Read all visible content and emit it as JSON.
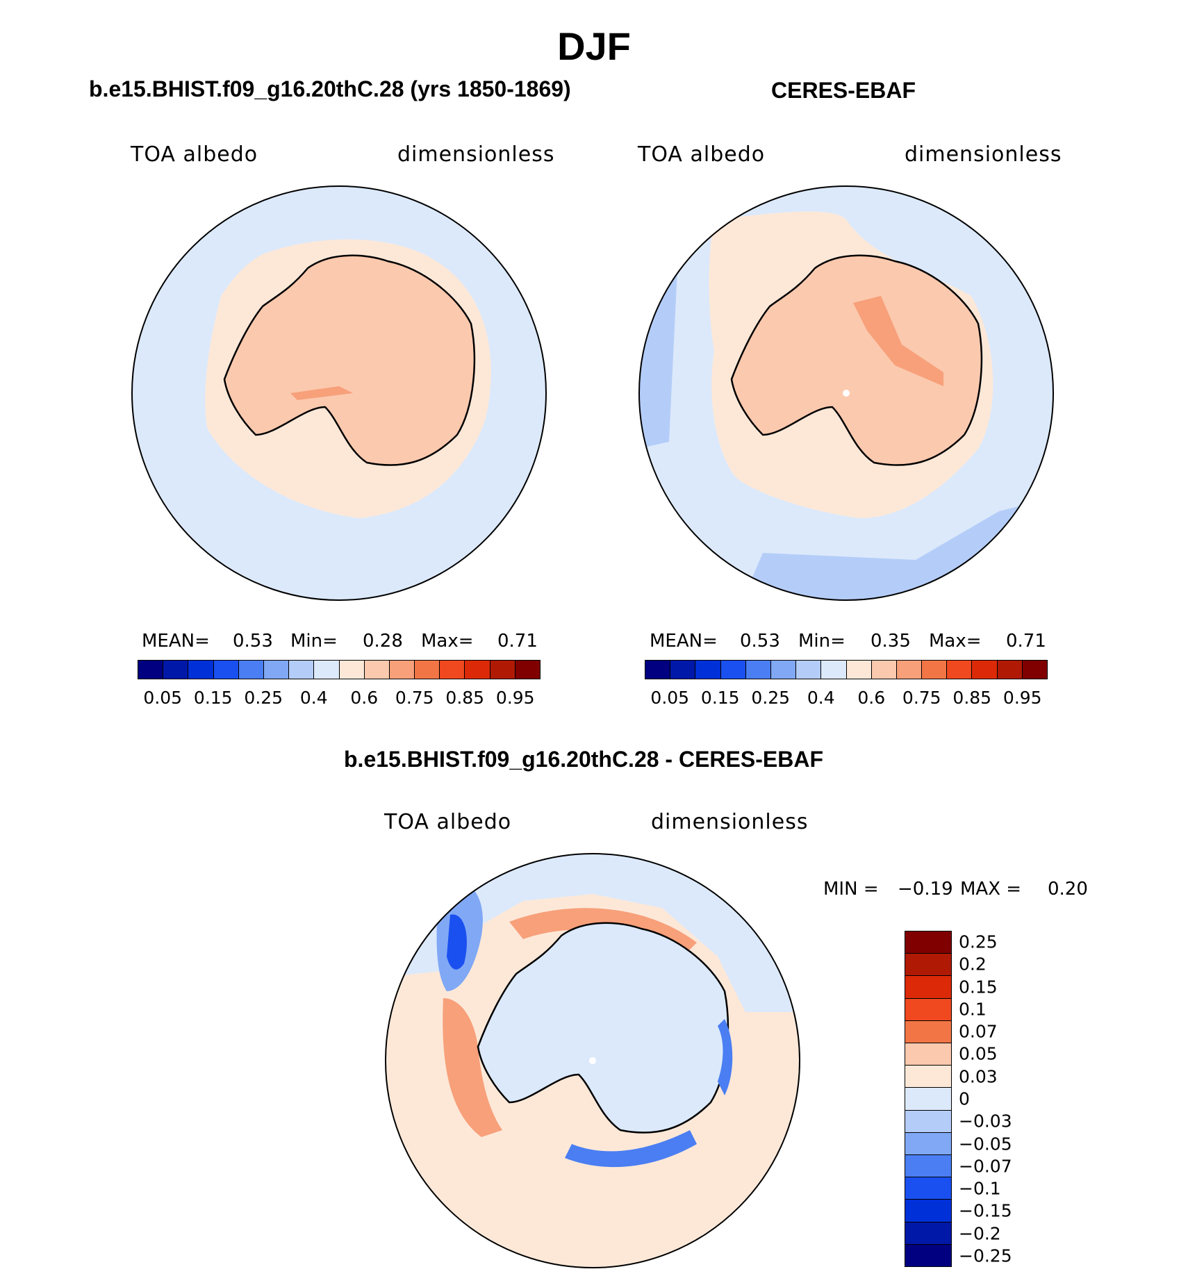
{
  "figure": {
    "season": "DJF"
  },
  "panels": {
    "model": {
      "title": "b.e15.BHIST.f09_g16.20thC.28 (yrs 1850-1869)",
      "left_label": "TOA albedo",
      "right_label": "dimensionless",
      "mean_label": "MEAN=",
      "mean_value": "0.53",
      "min_label": "Min=",
      "min_value": "0.28",
      "max_label": "Max=",
      "max_value": "0.71"
    },
    "obs": {
      "title": "CERES-EBAF",
      "left_label": "TOA albedo",
      "right_label": "dimensionless",
      "mean_label": "MEAN=",
      "mean_value": "0.53",
      "min_label": "Min=",
      "min_value": "0.35",
      "max_label": "Max=",
      "max_value": "0.71"
    },
    "diff": {
      "title": "b.e15.BHIST.f09_g16.20thC.28 - CERES-EBAF",
      "left_label": "TOA albedo",
      "right_label": "dimensionless",
      "min_label": "MIN =",
      "min_value": "−0.19",
      "max_label": "MAX =",
      "max_value": "0.20"
    }
  },
  "colorbar_abs": {
    "colors": [
      "#000080",
      "#0018a8",
      "#0030d8",
      "#1a50f0",
      "#4a7ef2",
      "#80a8f5",
      "#b4cdf8",
      "#dce9fb",
      "#fde8d8",
      "#fbc9ae",
      "#f7a07a",
      "#f27645",
      "#f0481f",
      "#dc2a08",
      "#b01a05",
      "#800000"
    ],
    "tick_labels": [
      "0.05",
      "0.15",
      "0.25",
      "0.4",
      "0.6",
      "0.75",
      "0.85",
      "0.95"
    ]
  },
  "colorbar_diff": {
    "colors": [
      "#800000",
      "#b01a05",
      "#dc2a08",
      "#f0481f",
      "#f27645",
      "#fbc9ae",
      "#fde8d8",
      "#dce9fb",
      "#b4cdf8",
      "#80a8f5",
      "#4a7ef2",
      "#1a50f0",
      "#0030d8",
      "#0018a8",
      "#000080"
    ],
    "tick_labels": [
      "0.25",
      "0.2",
      "0.15",
      "0.1",
      "0.07",
      "0.05",
      "0.03",
      "0",
      "−0.03",
      "−0.05",
      "−0.07",
      "−0.1",
      "−0.15",
      "−0.2",
      "−0.25"
    ]
  }
}
